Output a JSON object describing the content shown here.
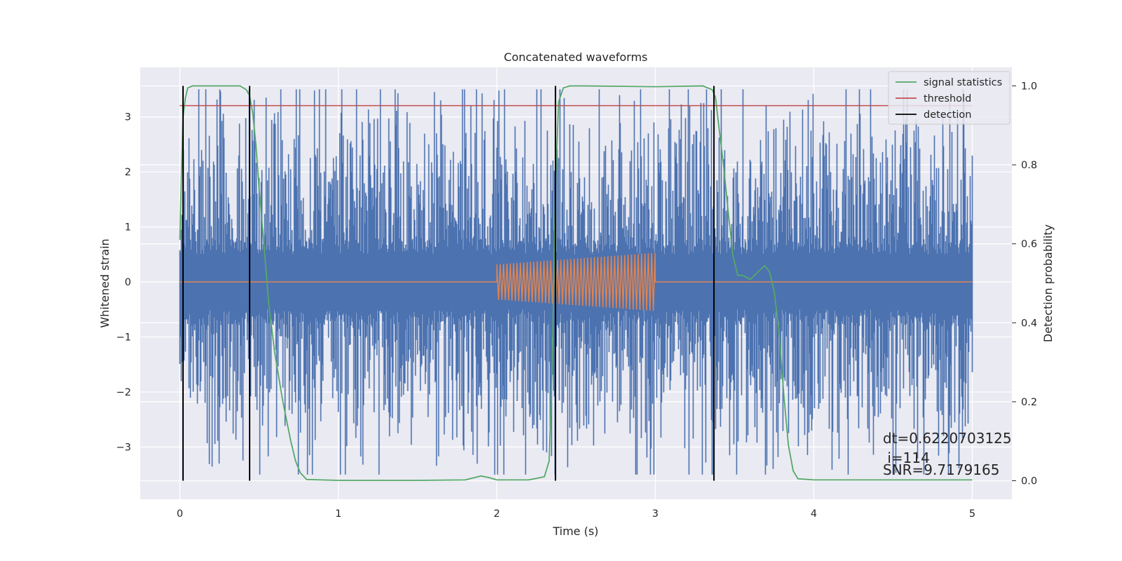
{
  "chart_data": {
    "type": "line",
    "title": "Concatenated waveforms",
    "xlabel": "Time (s)",
    "ylabel": "Whitened strain",
    "y2label": "Detection probability",
    "xlim": [
      -0.25,
      5.25
    ],
    "ylim": [
      -3.95,
      3.9
    ],
    "y2lim": [
      -0.047,
      1.047
    ],
    "xticks": [
      0,
      1,
      2,
      3,
      4,
      5
    ],
    "yticks": [
      -3,
      -2,
      -1,
      0,
      1,
      2,
      3
    ],
    "y2ticks": [
      0.0,
      0.2,
      0.4,
      0.6,
      0.8,
      1.0
    ],
    "xtick_labels": [
      "0",
      "1",
      "2",
      "3",
      "4",
      "5"
    ],
    "ytick_labels": [
      "−3",
      "−2",
      "−1",
      "0",
      "1",
      "2",
      "3"
    ],
    "y2tick_labels": [
      "0.0",
      "0.2",
      "0.4",
      "0.6",
      "0.8",
      "1.0"
    ],
    "grid": true,
    "legend_position": "top-right",
    "legend": [
      {
        "name": "signal statistics",
        "color": "#55a868"
      },
      {
        "name": "threshold",
        "color": "#c44e52"
      },
      {
        "name": "detection",
        "color": "#000000"
      }
    ],
    "series": [
      {
        "name": "whitened strain",
        "axis": "left",
        "color": "#4c72b0",
        "x_range": [
          0,
          5
        ],
        "noise_std": 1.0,
        "peak_range": [
          -3.5,
          3.5
        ]
      },
      {
        "name": "injected signal",
        "axis": "left",
        "color": "#dd8452",
        "x_range": [
          0,
          5
        ],
        "burst_start": 2.0,
        "burst_end": 3.0,
        "amplitude_start": 0.32,
        "amplitude_end": 0.53
      },
      {
        "name": "signal statistics",
        "axis": "right",
        "color": "#55a868",
        "x": [
          0,
          0.01,
          0.02,
          0.035,
          0.05,
          0.08,
          0.12,
          0.2,
          0.3,
          0.38,
          0.42,
          0.44,
          0.46,
          0.48,
          0.5,
          0.53,
          0.56,
          0.6,
          0.65,
          0.7,
          0.73,
          0.76,
          0.8,
          1.0,
          1.5,
          1.8,
          1.86,
          1.9,
          1.95,
          2.0,
          2.2,
          2.3,
          2.33,
          2.35,
          2.37,
          2.39,
          2.42,
          2.46,
          2.55,
          3.0,
          3.3,
          3.36,
          3.38,
          3.4,
          3.43,
          3.46,
          3.49,
          3.52,
          3.55,
          3.6,
          3.65,
          3.69,
          3.72,
          3.75,
          3.78,
          3.81,
          3.84,
          3.87,
          3.9,
          4.0,
          5.0
        ],
        "values": [
          0.61,
          0.78,
          0.92,
          0.97,
          0.995,
          1.0,
          1.0,
          1.0,
          1.0,
          1.0,
          0.99,
          0.975,
          0.93,
          0.85,
          0.74,
          0.6,
          0.45,
          0.32,
          0.2,
          0.1,
          0.05,
          0.02,
          0.003,
          0.001,
          0.001,
          0.002,
          0.008,
          0.012,
          0.008,
          0.002,
          0.002,
          0.01,
          0.05,
          0.3,
          0.75,
          0.96,
          0.995,
          1.0,
          1.0,
          0.998,
          1.0,
          0.99,
          0.97,
          0.9,
          0.8,
          0.68,
          0.57,
          0.52,
          0.52,
          0.51,
          0.53,
          0.545,
          0.53,
          0.48,
          0.38,
          0.22,
          0.09,
          0.025,
          0.005,
          0.002,
          0.002
        ]
      },
      {
        "name": "threshold",
        "axis": "right",
        "color": "#c44e52",
        "x": [
          0,
          5
        ],
        "values": [
          0.95,
          0.95
        ]
      }
    ],
    "detections": [
      0.02,
      0.44,
      2.37,
      3.37
    ],
    "annotations": [
      "dt=0.6220703125",
      " i=114",
      "SNR=9.7179165"
    ]
  }
}
